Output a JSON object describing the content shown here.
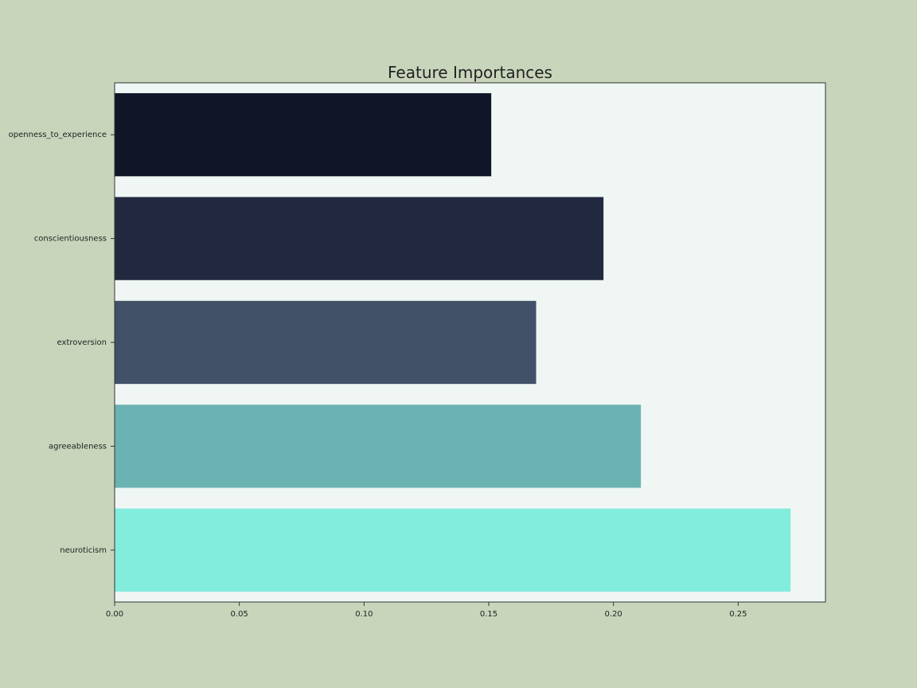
{
  "chart_data": {
    "type": "bar",
    "orientation": "horizontal",
    "title": "Feature Importances",
    "xlabel": "",
    "ylabel": "",
    "categories": [
      "openness_to_experience",
      "conscientiousness",
      "extroversion",
      "agreeableness",
      "neuroticism"
    ],
    "values": [
      0.151,
      0.196,
      0.169,
      0.211,
      0.271
    ],
    "bar_colors": [
      "#101527",
      "#22283e",
      "#415167",
      "#6ab3b2",
      "#82ecdd"
    ],
    "xlim": [
      0,
      0.285
    ],
    "xticks": [
      "0.00",
      "0.05",
      "0.10",
      "0.15",
      "0.20",
      "0.25"
    ],
    "grid": false,
    "legend": "none"
  },
  "colors": {
    "background": "#c9d5bb",
    "plot_background": "#eff6f4",
    "axis": "#333333"
  }
}
